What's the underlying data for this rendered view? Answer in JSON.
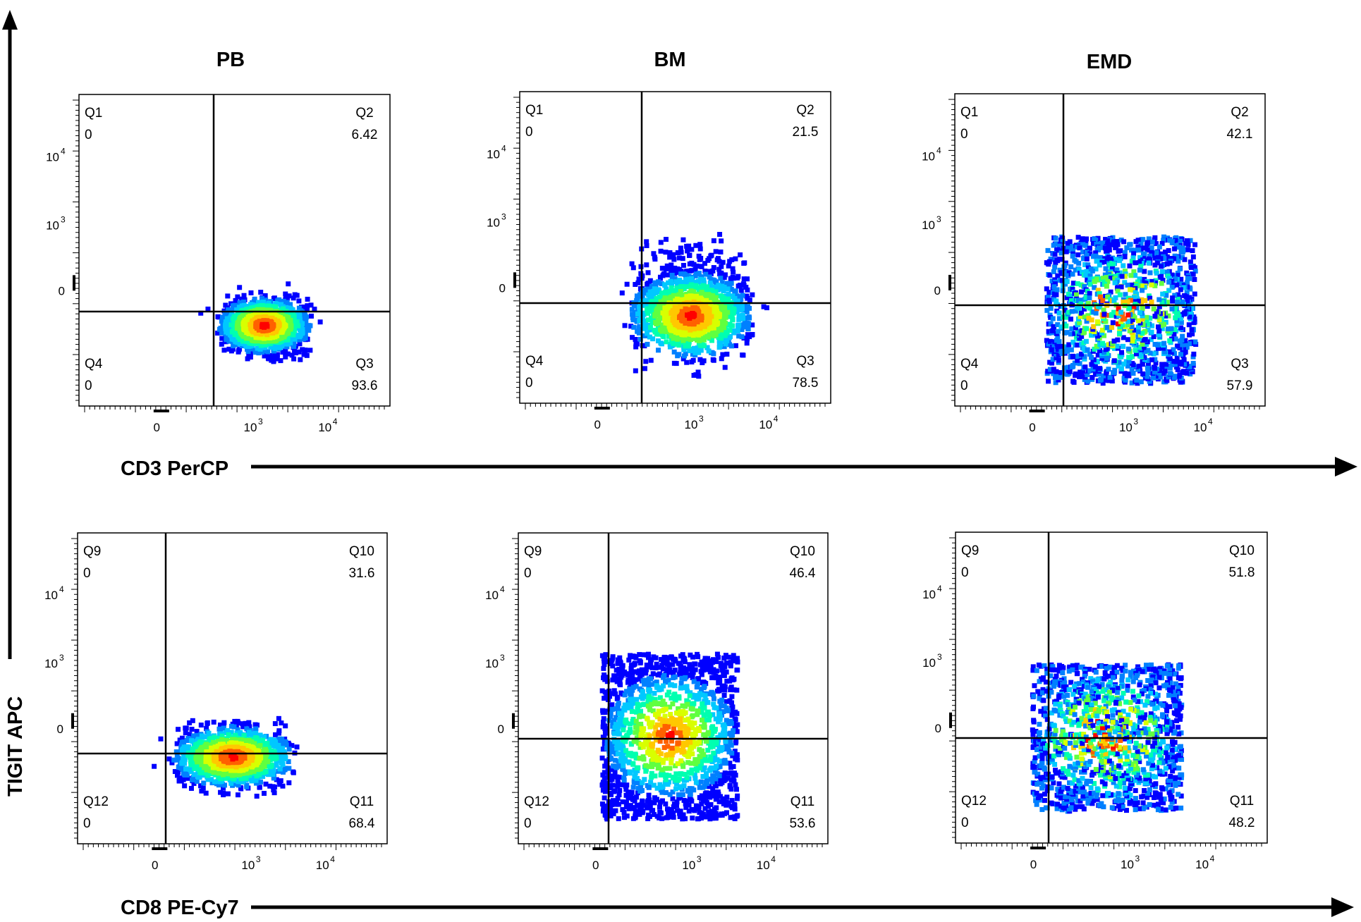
{
  "colors": {
    "density_scale": [
      "#0000ff",
      "#0080ff",
      "#00c8ff",
      "#00ffb0",
      "#60ff40",
      "#d8ff00",
      "#ffc800",
      "#ff6000",
      "#ff0000"
    ],
    "axis": "#000000",
    "background": "#ffffff"
  },
  "chart_data": {
    "type": "scatter",
    "subtype": "flow-cytometry-quadrant-density-plots",
    "columns": [
      "PB",
      "BM",
      "EMD"
    ],
    "y_axis_label": "TIGIT APC",
    "row_x_labels": [
      "CD3 PerCP",
      "CD8 PE-Cy7"
    ],
    "y_ticks": [
      "0",
      "10^3",
      "10^4"
    ],
    "x_ticks": [
      "0",
      "10^3",
      "10^4"
    ],
    "axis_scale": "biexponential",
    "rows": [
      {
        "x_marker": "CD3 PerCP",
        "panels": [
          {
            "sample": "PB",
            "quadrants": [
              {
                "name": "Q1",
                "percent": "0"
              },
              {
                "name": "Q2",
                "percent": "6.42"
              },
              {
                "name": "Q3",
                "percent": "93.6"
              },
              {
                "name": "Q4",
                "percent": "0"
              }
            ]
          },
          {
            "sample": "BM",
            "quadrants": [
              {
                "name": "Q1",
                "percent": "0"
              },
              {
                "name": "Q2",
                "percent": "21.5"
              },
              {
                "name": "Q3",
                "percent": "78.5"
              },
              {
                "name": "Q4",
                "percent": "0"
              }
            ]
          },
          {
            "sample": "EMD",
            "quadrants": [
              {
                "name": "Q1",
                "percent": "0"
              },
              {
                "name": "Q2",
                "percent": "42.1"
              },
              {
                "name": "Q3",
                "percent": "57.9"
              },
              {
                "name": "Q4",
                "percent": "0"
              }
            ]
          }
        ]
      },
      {
        "x_marker": "CD8 PE-Cy7",
        "panels": [
          {
            "sample": "PB",
            "quadrants": [
              {
                "name": "Q9",
                "percent": "0"
              },
              {
                "name": "Q10",
                "percent": "31.6"
              },
              {
                "name": "Q11",
                "percent": "68.4"
              },
              {
                "name": "Q12",
                "percent": "0"
              }
            ]
          },
          {
            "sample": "BM",
            "quadrants": [
              {
                "name": "Q9",
                "percent": "0"
              },
              {
                "name": "Q10",
                "percent": "46.4"
              },
              {
                "name": "Q11",
                "percent": "53.6"
              },
              {
                "name": "Q12",
                "percent": "0"
              }
            ]
          },
          {
            "sample": "EMD",
            "quadrants": [
              {
                "name": "Q9",
                "percent": "0"
              },
              {
                "name": "Q10",
                "percent": "51.8"
              },
              {
                "name": "Q11",
                "percent": "48.2"
              },
              {
                "name": "Q12",
                "percent": "0"
              }
            ]
          }
        ]
      }
    ]
  }
}
